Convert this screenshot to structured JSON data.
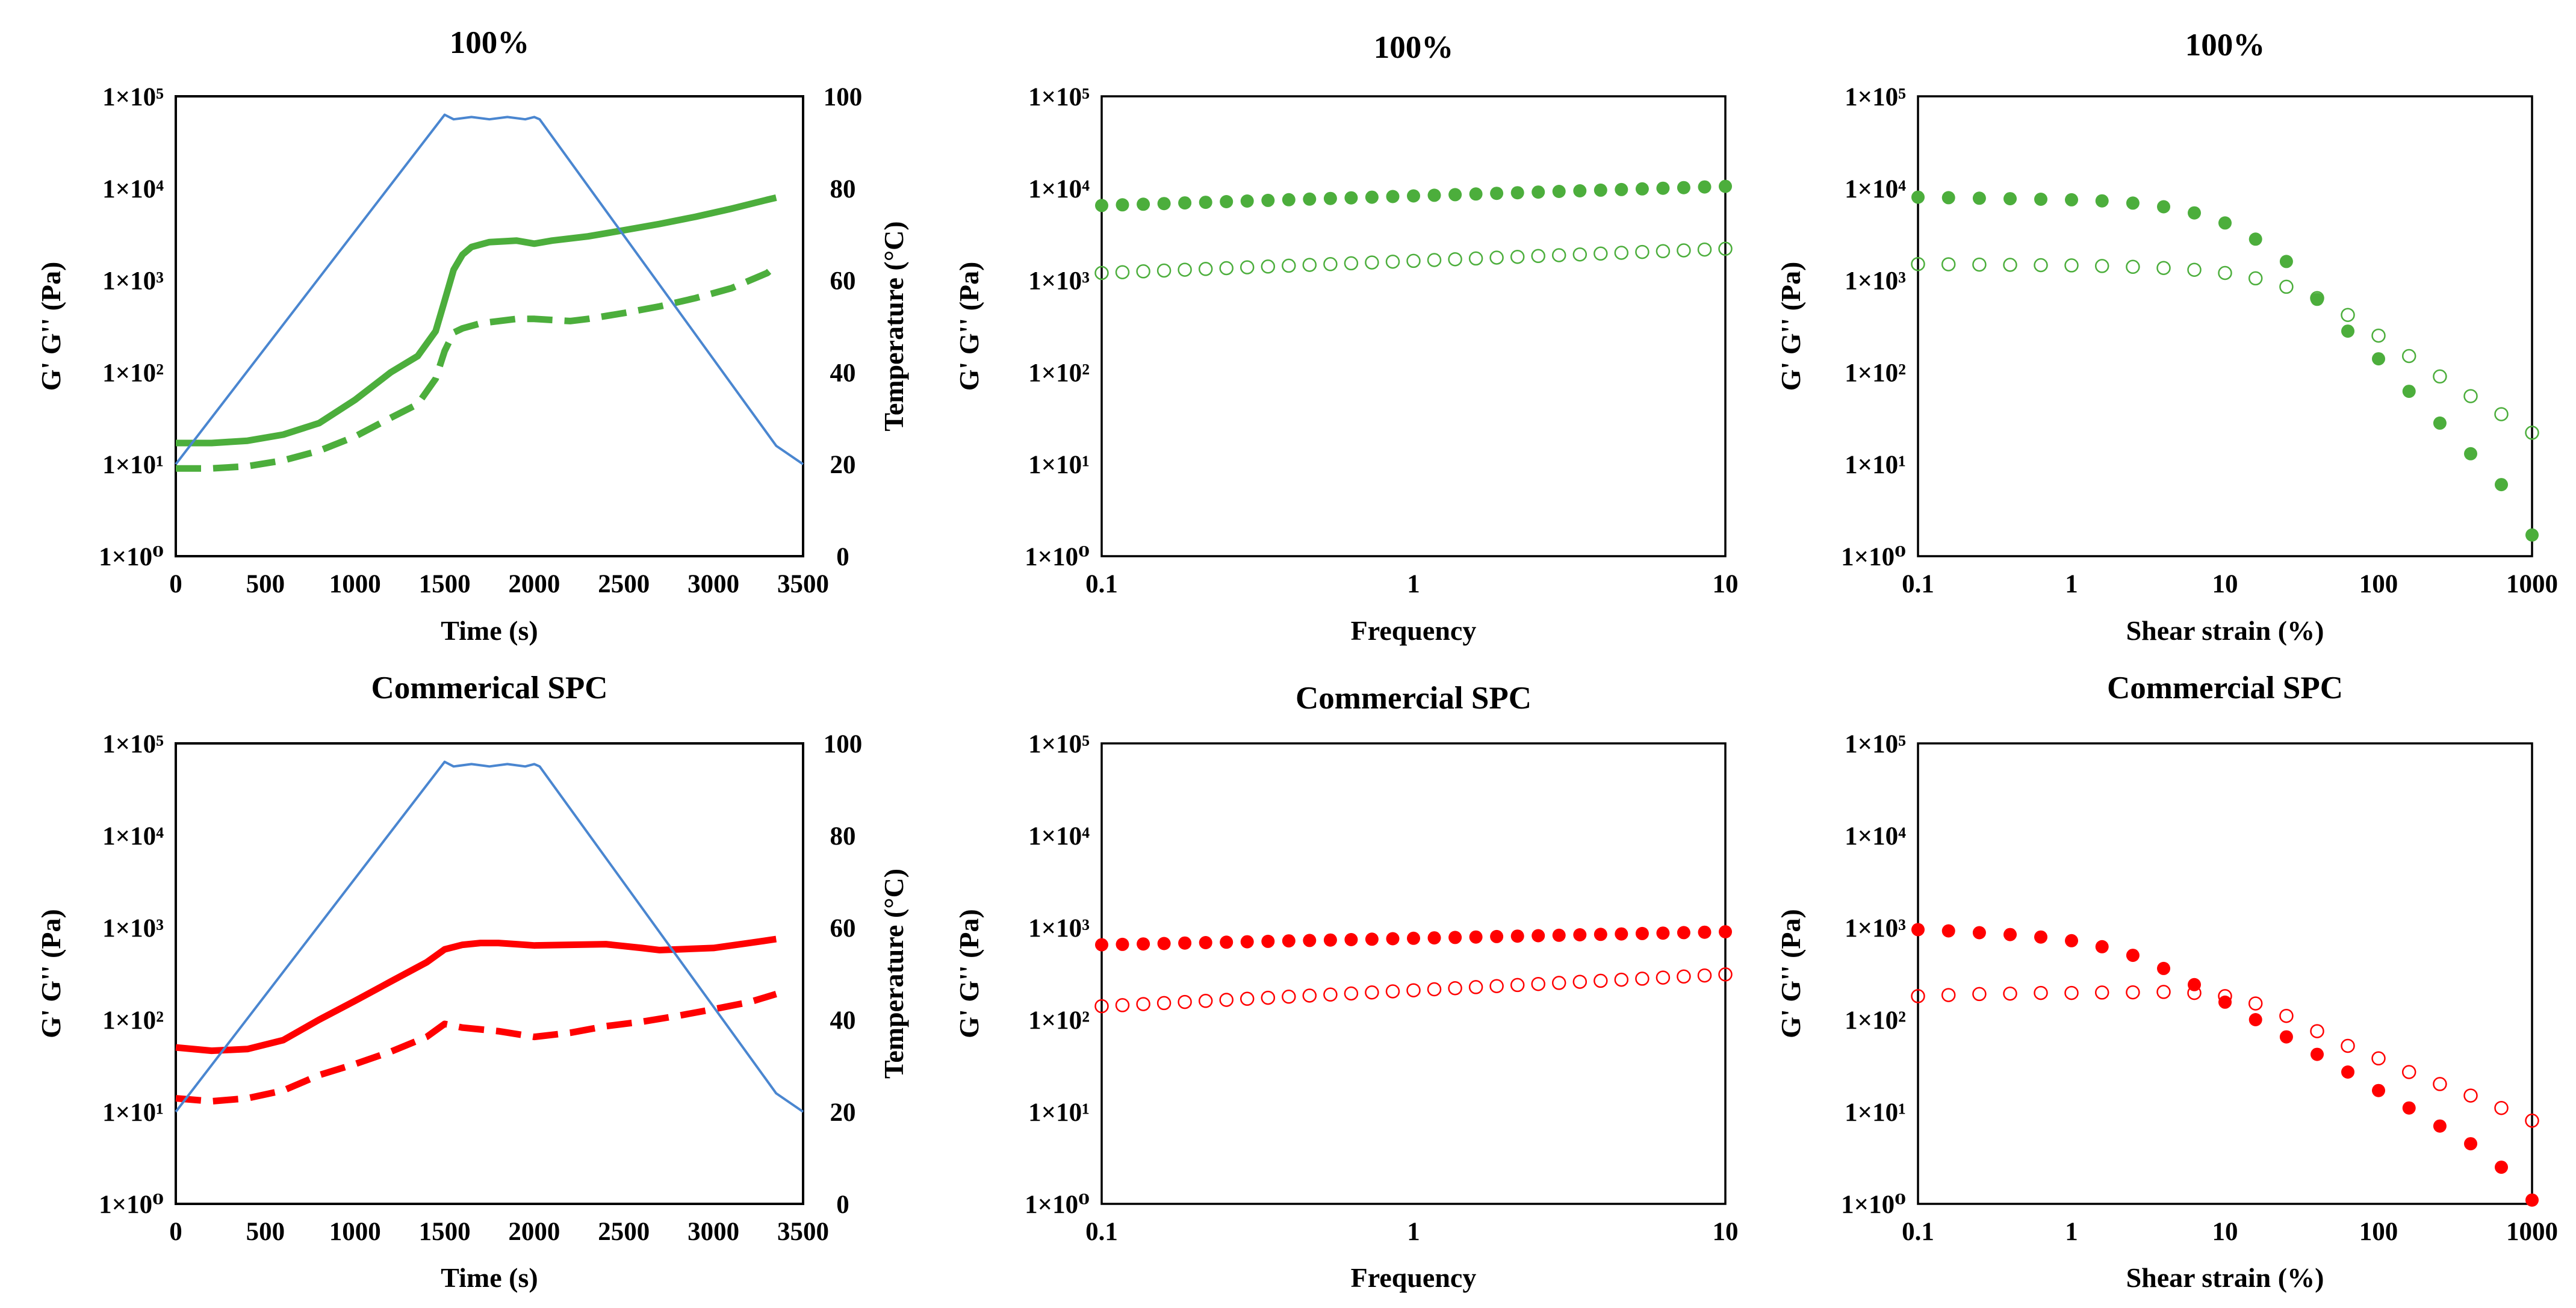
{
  "figure": {
    "colors": {
      "green": "#4cae3c",
      "red": "#ff0000",
      "blue": "#4a86d0",
      "axis": "#000000"
    }
  },
  "chart_data": [
    {
      "type": "line",
      "title": "100%",
      "xlabel": "Time (s)",
      "ylabel": "G' G'' (Pa)",
      "y2label": "Temperature (°C)",
      "xlim": [
        0,
        3500
      ],
      "ylim": [
        1,
        100000
      ],
      "y2lim": [
        0,
        100
      ],
      "yscale": "log",
      "xticks": [
        "0",
        "500",
        "1000",
        "1500",
        "2000",
        "2500",
        "3000",
        "3500"
      ],
      "yticks": [
        "1×10⁰",
        "1×10¹",
        "1×10²",
        "1×10³",
        "1×10⁴",
        "1×10⁵"
      ],
      "y2ticks": [
        "0",
        "20",
        "40",
        "60",
        "80",
        "100"
      ],
      "series": [
        {
          "name": "G'",
          "axis": "y",
          "style": "solid",
          "color": "green",
          "x": [
            0,
            200,
            400,
            600,
            800,
            1000,
            1200,
            1350,
            1450,
            1500,
            1550,
            1600,
            1650,
            1750,
            1900,
            2000,
            2100,
            2300,
            2500,
            2700,
            2900,
            3100,
            3300,
            3350
          ],
          "y": [
            17,
            17,
            18,
            21,
            28,
            50,
            100,
            150,
            280,
            600,
            1300,
            1900,
            2300,
            2600,
            2700,
            2500,
            2700,
            3000,
            3500,
            4100,
            4900,
            6000,
            7500,
            7900
          ]
        },
        {
          "name": "G''",
          "axis": "y",
          "style": "dashed",
          "color": "green",
          "x": [
            0,
            200,
            400,
            600,
            800,
            1000,
            1200,
            1350,
            1450,
            1500,
            1550,
            1600,
            1700,
            1900,
            2000,
            2200,
            2300,
            2500,
            2700,
            2900,
            3100,
            3300,
            3350
          ],
          "y": [
            9,
            9,
            9.5,
            11,
            14,
            20,
            32,
            45,
            85,
            170,
            270,
            300,
            340,
            380,
            380,
            360,
            380,
            440,
            520,
            640,
            820,
            1200,
            1450
          ]
        },
        {
          "name": "Temperature",
          "axis": "y2",
          "style": "solid",
          "color": "blue",
          "x": [
            0,
            1500,
            1550,
            1650,
            1750,
            1850,
            1950,
            2000,
            2030,
            3350,
            3500
          ],
          "y": [
            20,
            96,
            95,
            95.5,
            95,
            95.5,
            95,
            95.5,
            95,
            24,
            20
          ]
        }
      ]
    },
    {
      "type": "scatter",
      "title": "100%",
      "xlabel": "Frequency",
      "ylabel": "G' G'' (Pa)",
      "xlim": [
        0.1,
        10
      ],
      "ylim": [
        1,
        100000
      ],
      "xscale": "log",
      "yscale": "log",
      "xticks": [
        "0.1",
        "1",
        "10"
      ],
      "yticks": [
        "1×10⁰",
        "1×10¹",
        "1×10²",
        "1×10³",
        "1×10⁴",
        "1×10⁵"
      ],
      "series": [
        {
          "name": "G'",
          "marker": "filled",
          "color": "green",
          "x_range": [
            0.1,
            10
          ],
          "n": 31,
          "y_start": 6500,
          "y_end": 10500
        },
        {
          "name": "G''",
          "marker": "open",
          "color": "green",
          "x_range": [
            0.1,
            10
          ],
          "n": 31,
          "y_start": 1200,
          "y_end": 2200
        }
      ]
    },
    {
      "type": "scatter",
      "title": "100%",
      "xlabel": "Shear strain (%)",
      "ylabel": "G' G'' (Pa)",
      "xlim": [
        0.1,
        1000
      ],
      "ylim": [
        1,
        100000
      ],
      "xscale": "log",
      "yscale": "log",
      "xticks": [
        "0.1",
        "1",
        "10",
        "100",
        "1000"
      ],
      "yticks": [
        "1×10⁰",
        "1×10¹",
        "1×10²",
        "1×10³",
        "1×10⁴",
        "1×10⁵"
      ],
      "series": [
        {
          "name": "G'",
          "marker": "filled",
          "color": "green",
          "x": [
            0.1,
            0.158,
            0.251,
            0.398,
            0.631,
            1,
            1.58,
            2.51,
            3.98,
            6.31,
            10,
            15.8,
            25.1,
            39.8,
            63.1,
            100,
            158,
            251,
            398,
            631,
            1000
          ],
          "y": [
            8000,
            7900,
            7800,
            7700,
            7600,
            7500,
            7300,
            6900,
            6300,
            5400,
            4200,
            2800,
            1600,
            620,
            280,
            140,
            62,
            28,
            13,
            6,
            1.7
          ]
        },
        {
          "name": "G''",
          "marker": "open",
          "color": "green",
          "x": [
            0.1,
            0.158,
            0.251,
            0.398,
            0.631,
            1,
            1.58,
            2.51,
            3.98,
            6.31,
            10,
            15.8,
            25.1,
            39.8,
            63.1,
            100,
            158,
            251,
            398,
            631,
            1000
          ],
          "y": [
            1500,
            1490,
            1480,
            1470,
            1460,
            1450,
            1430,
            1400,
            1360,
            1300,
            1200,
            1050,
            850,
            640,
            420,
            250,
            150,
            90,
            55,
            35,
            22
          ]
        }
      ]
    },
    {
      "type": "line",
      "title": "Commerical SPC",
      "xlabel": "Time (s)",
      "ylabel": "G' G'' (Pa)",
      "y2label": "Temperature (°C)",
      "xlim": [
        0,
        3500
      ],
      "ylim": [
        1,
        100000
      ],
      "y2lim": [
        0,
        100
      ],
      "yscale": "log",
      "xticks": [
        "0",
        "500",
        "1000",
        "1500",
        "2000",
        "2500",
        "3000",
        "3500"
      ],
      "yticks": [
        "1×10⁰",
        "1×10¹",
        "1×10²",
        "1×10³",
        "1×10⁴",
        "1×10⁵"
      ],
      "y2ticks": [
        "0",
        "20",
        "40",
        "60",
        "80",
        "100"
      ],
      "series": [
        {
          "name": "G'",
          "axis": "y",
          "style": "solid",
          "color": "red",
          "x": [
            0,
            200,
            400,
            600,
            800,
            1000,
            1200,
            1400,
            1500,
            1600,
            1700,
            1800,
            1900,
            2000,
            2200,
            2400,
            2600,
            2700,
            2800,
            3000,
            3200,
            3350
          ],
          "y": [
            50,
            46,
            48,
            60,
            100,
            160,
            260,
            420,
            580,
            650,
            680,
            680,
            660,
            640,
            650,
            660,
            600,
            570,
            580,
            600,
            680,
            750
          ]
        },
        {
          "name": "G''",
          "axis": "y",
          "style": "dashed",
          "color": "red",
          "x": [
            0,
            200,
            400,
            600,
            800,
            1000,
            1200,
            1400,
            1500,
            1600,
            1800,
            2000,
            2200,
            2400,
            2600,
            2800,
            3000,
            3200,
            3350
          ],
          "y": [
            14,
            13,
            14,
            17,
            25,
            33,
            45,
            65,
            90,
            82,
            75,
            65,
            72,
            85,
            95,
            110,
            130,
            155,
            190
          ]
        },
        {
          "name": "Temperature",
          "axis": "y2",
          "style": "solid",
          "color": "blue",
          "x": [
            0,
            1500,
            1550,
            1650,
            1750,
            1850,
            1950,
            2000,
            2030,
            3350,
            3500
          ],
          "y": [
            20,
            96,
            95,
            95.5,
            95,
            95.5,
            95,
            95.5,
            95,
            24,
            20
          ]
        }
      ]
    },
    {
      "type": "scatter",
      "title": "Commercial SPC",
      "xlabel": "Frequency",
      "ylabel": "G' G'' (Pa)",
      "xlim": [
        0.1,
        10
      ],
      "ylim": [
        1,
        100000
      ],
      "xscale": "log",
      "yscale": "log",
      "xticks": [
        "0.1",
        "1",
        "10"
      ],
      "yticks": [
        "1×10⁰",
        "1×10¹",
        "1×10²",
        "1×10³",
        "1×10⁴",
        "1×10⁵"
      ],
      "series": [
        {
          "name": "G'",
          "marker": "filled",
          "color": "red",
          "x_range": [
            0.1,
            10
          ],
          "n": 31,
          "y_start": 650,
          "y_end": 900
        },
        {
          "name": "G''",
          "marker": "open",
          "color": "red",
          "x_range": [
            0.1,
            10
          ],
          "n": 31,
          "y_start": 140,
          "y_end": 310
        }
      ]
    },
    {
      "type": "scatter",
      "title": "Commercial SPC",
      "xlabel": "Shear strain (%)",
      "ylabel": "G' G'' (Pa)",
      "xlim": [
        0.1,
        1000
      ],
      "ylim": [
        1,
        100000
      ],
      "xscale": "log",
      "yscale": "log",
      "xticks": [
        "0.1",
        "1",
        "10",
        "100",
        "1000"
      ],
      "yticks": [
        "1×10⁰",
        "1×10¹",
        "1×10²",
        "1×10³",
        "1×10⁴",
        "1×10⁵"
      ],
      "series": [
        {
          "name": "G'",
          "marker": "filled",
          "color": "red",
          "x": [
            0.1,
            0.158,
            0.251,
            0.398,
            0.631,
            1,
            1.58,
            2.51,
            3.98,
            6.31,
            10,
            15.8,
            25.1,
            39.8,
            63.1,
            100,
            158,
            251,
            398,
            631,
            1000
          ],
          "y": [
            950,
            920,
            880,
            840,
            790,
            720,
            620,
            500,
            360,
            240,
            155,
            100,
            65,
            42,
            27,
            17,
            11,
            7,
            4.5,
            2.5,
            1.1
          ]
        },
        {
          "name": "G''",
          "marker": "open",
          "color": "red",
          "x": [
            0.1,
            0.158,
            0.251,
            0.398,
            0.631,
            1,
            1.58,
            2.51,
            3.98,
            6.31,
            10,
            15.8,
            25.1,
            39.8,
            63.1,
            100,
            158,
            251,
            398,
            631,
            1000
          ],
          "y": [
            180,
            185,
            190,
            192,
            195,
            195,
            197,
            198,
            200,
            195,
            180,
            150,
            110,
            75,
            52,
            38,
            27,
            20,
            15,
            11,
            8
          ]
        }
      ]
    }
  ]
}
